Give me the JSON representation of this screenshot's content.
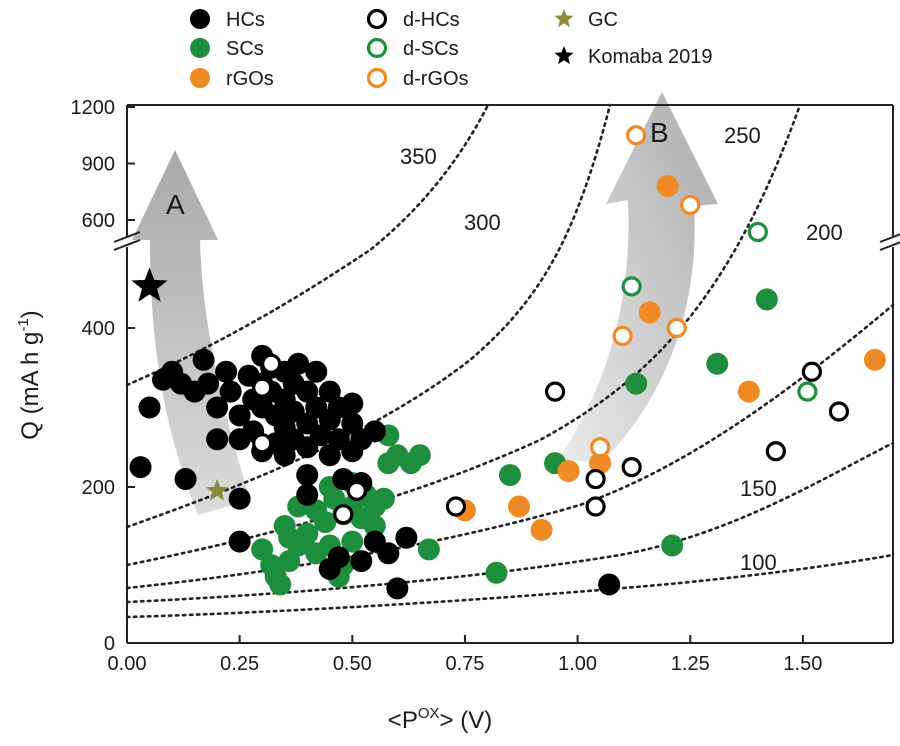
{
  "chart_data": {
    "type": "scatter",
    "title": "",
    "xlabel": "<P",
    "xlabel_superscript": "OX",
    "xlabel_suffix": "> (V)",
    "ylabel": "Q (mA h g",
    "ylabel_superscript": "-1",
    "ylabel_suffix": ")",
    "xlim": [
      0,
      1.7
    ],
    "x_ticks": [
      0,
      0.25,
      0.5,
      0.75,
      1.0,
      1.25,
      1.5
    ],
    "x_tick_labels": [
      "0.00",
      "0.25",
      "0.50",
      "0.75",
      "1.00",
      "1.25",
      "1.50"
    ],
    "y_lower_ticks": [
      0,
      200,
      400
    ],
    "y_lower_tick_labels": [
      "0",
      "200",
      "400"
    ],
    "y_upper_ticks": [
      600,
      900,
      1200
    ],
    "y_upper_tick_labels": [
      "600",
      "900",
      "1200"
    ],
    "y_break": [
      500,
      550
    ],
    "legend": [
      {
        "key": "HCs",
        "label": "HCs",
        "marker": "filled-circle",
        "color": "#000000"
      },
      {
        "key": "SCs",
        "label": "SCs",
        "marker": "filled-circle",
        "color": "#1d8f3c"
      },
      {
        "key": "rGOs",
        "label": "rGOs",
        "marker": "filled-circle",
        "color": "#f08a24"
      },
      {
        "key": "dHCs",
        "label": "d-HCs",
        "marker": "open-circle",
        "color": "#000000"
      },
      {
        "key": "dSCs",
        "label": "d-SCs",
        "marker": "open-circle",
        "color": "#1d8f3c"
      },
      {
        "key": "drGOs",
        "label": "d-rGOs",
        "marker": "open-circle",
        "color": "#f08a24"
      },
      {
        "key": "GC",
        "label": "GC",
        "marker": "star",
        "color": "#8b8a3a"
      },
      {
        "key": "Komaba",
        "label": "Komaba 2019",
        "marker": "star",
        "color": "#000000"
      }
    ],
    "contours": [
      {
        "label": "100",
        "energy_Wh_kg": 100
      },
      {
        "label": "150",
        "energy_Wh_kg": 150
      },
      {
        "label": "200",
        "energy_Wh_kg": 200
      },
      {
        "label": "250",
        "energy_Wh_kg": 250
      },
      {
        "label": "300",
        "energy_Wh_kg": 300
      },
      {
        "label": "350",
        "energy_Wh_kg": 350
      }
    ],
    "annotations": [
      {
        "text": "A"
      },
      {
        "text": "B"
      }
    ],
    "series": [
      {
        "key": "HCs",
        "name": "HCs",
        "points": [
          [
            0.03,
            225
          ],
          [
            0.05,
            300
          ],
          [
            0.08,
            335
          ],
          [
            0.1,
            345
          ],
          [
            0.12,
            330
          ],
          [
            0.13,
            210
          ],
          [
            0.15,
            320
          ],
          [
            0.17,
            360
          ],
          [
            0.18,
            330
          ],
          [
            0.2,
            300
          ],
          [
            0.2,
            260
          ],
          [
            0.22,
            345
          ],
          [
            0.23,
            320
          ],
          [
            0.25,
            290
          ],
          [
            0.25,
            260
          ],
          [
            0.25,
            185
          ],
          [
            0.25,
            130
          ],
          [
            0.27,
            340
          ],
          [
            0.28,
            310
          ],
          [
            0.28,
            270
          ],
          [
            0.3,
            365
          ],
          [
            0.3,
            330
          ],
          [
            0.3,
            300
          ],
          [
            0.3,
            245
          ],
          [
            0.32,
            350
          ],
          [
            0.32,
            320
          ],
          [
            0.33,
            290
          ],
          [
            0.33,
            255
          ],
          [
            0.35,
            345
          ],
          [
            0.35,
            310
          ],
          [
            0.35,
            275
          ],
          [
            0.35,
            240
          ],
          [
            0.37,
            330
          ],
          [
            0.37,
            295
          ],
          [
            0.37,
            260
          ],
          [
            0.38,
            355
          ],
          [
            0.4,
            320
          ],
          [
            0.4,
            280
          ],
          [
            0.4,
            250
          ],
          [
            0.4,
            215
          ],
          [
            0.4,
            190
          ],
          [
            0.42,
            345
          ],
          [
            0.42,
            300
          ],
          [
            0.43,
            265
          ],
          [
            0.45,
            320
          ],
          [
            0.45,
            285
          ],
          [
            0.45,
            240
          ],
          [
            0.47,
            300
          ],
          [
            0.47,
            260
          ],
          [
            0.48,
            210
          ],
          [
            0.5,
            305
          ],
          [
            0.5,
            280
          ],
          [
            0.5,
            245
          ],
          [
            0.52,
            260
          ],
          [
            0.52,
            205
          ],
          [
            0.55,
            270
          ],
          [
            0.55,
            130
          ],
          [
            0.58,
            115
          ],
          [
            0.6,
            70
          ],
          [
            0.62,
            135
          ],
          [
            0.45,
            95
          ],
          [
            0.47,
            110
          ],
          [
            0.52,
            105
          ],
          [
            1.07,
            75
          ]
        ]
      },
      {
        "key": "SCs",
        "name": "SCs",
        "points": [
          [
            0.38,
            175
          ],
          [
            0.42,
            170
          ],
          [
            0.44,
            155
          ],
          [
            0.45,
            200
          ],
          [
            0.46,
            185
          ],
          [
            0.48,
            165
          ],
          [
            0.5,
            205
          ],
          [
            0.5,
            175
          ],
          [
            0.52,
            160
          ],
          [
            0.53,
            190
          ],
          [
            0.55,
            150
          ],
          [
            0.55,
            175
          ],
          [
            0.57,
            185
          ],
          [
            0.58,
            230
          ],
          [
            0.6,
            240
          ],
          [
            0.63,
            230
          ],
          [
            0.65,
            240
          ],
          [
            0.58,
            265
          ],
          [
            0.35,
            150
          ],
          [
            0.36,
            135
          ],
          [
            0.38,
            125
          ],
          [
            0.4,
            140
          ],
          [
            0.42,
            115
          ],
          [
            0.45,
            125
          ],
          [
            0.47,
            85
          ],
          [
            0.48,
            100
          ],
          [
            0.5,
            130
          ],
          [
            0.3,
            120
          ],
          [
            0.32,
            100
          ],
          [
            0.33,
            85
          ],
          [
            0.34,
            75
          ],
          [
            0.36,
            105
          ],
          [
            0.67,
            120
          ],
          [
            0.82,
            90
          ],
          [
            0.85,
            215
          ],
          [
            0.95,
            230
          ],
          [
            1.13,
            330
          ],
          [
            1.21,
            125
          ],
          [
            1.31,
            355
          ],
          [
            1.42,
            455
          ]
        ]
      },
      {
        "key": "rGOs",
        "name": "rGOs",
        "points": [
          [
            0.75,
            170
          ],
          [
            0.87,
            175
          ],
          [
            0.92,
            145
          ],
          [
            0.98,
            220
          ],
          [
            1.05,
            230
          ],
          [
            1.16,
            430
          ],
          [
            1.2,
            780
          ],
          [
            1.38,
            320
          ],
          [
            1.66,
            360
          ]
        ]
      },
      {
        "key": "dHCs",
        "name": "d-HCs",
        "points": [
          [
            0.32,
            355
          ],
          [
            0.3,
            325
          ],
          [
            0.3,
            255
          ],
          [
            0.48,
            165
          ],
          [
            0.51,
            195
          ],
          [
            0.73,
            175
          ],
          [
            0.95,
            320
          ],
          [
            1.04,
            210
          ],
          [
            1.04,
            175
          ],
          [
            1.12,
            225
          ],
          [
            1.44,
            245
          ],
          [
            1.52,
            345
          ],
          [
            1.58,
            295
          ]
        ]
      },
      {
        "key": "dSCs",
        "name": "d-SCs",
        "points": [
          [
            1.12,
            480
          ],
          [
            1.4,
            580
          ],
          [
            1.51,
            320
          ]
        ]
      },
      {
        "key": "drGOs",
        "name": "d-rGOs",
        "points": [
          [
            1.05,
            250
          ],
          [
            1.1,
            390
          ],
          [
            1.13,
            1050
          ],
          [
            1.22,
            400
          ],
          [
            1.25,
            680
          ]
        ]
      },
      {
        "key": "GC",
        "name": "GC",
        "points": [
          [
            0.2,
            195
          ]
        ]
      },
      {
        "key": "Komaba",
        "name": "Komaba 2019",
        "points": [
          [
            0.05,
            480
          ]
        ]
      }
    ]
  }
}
